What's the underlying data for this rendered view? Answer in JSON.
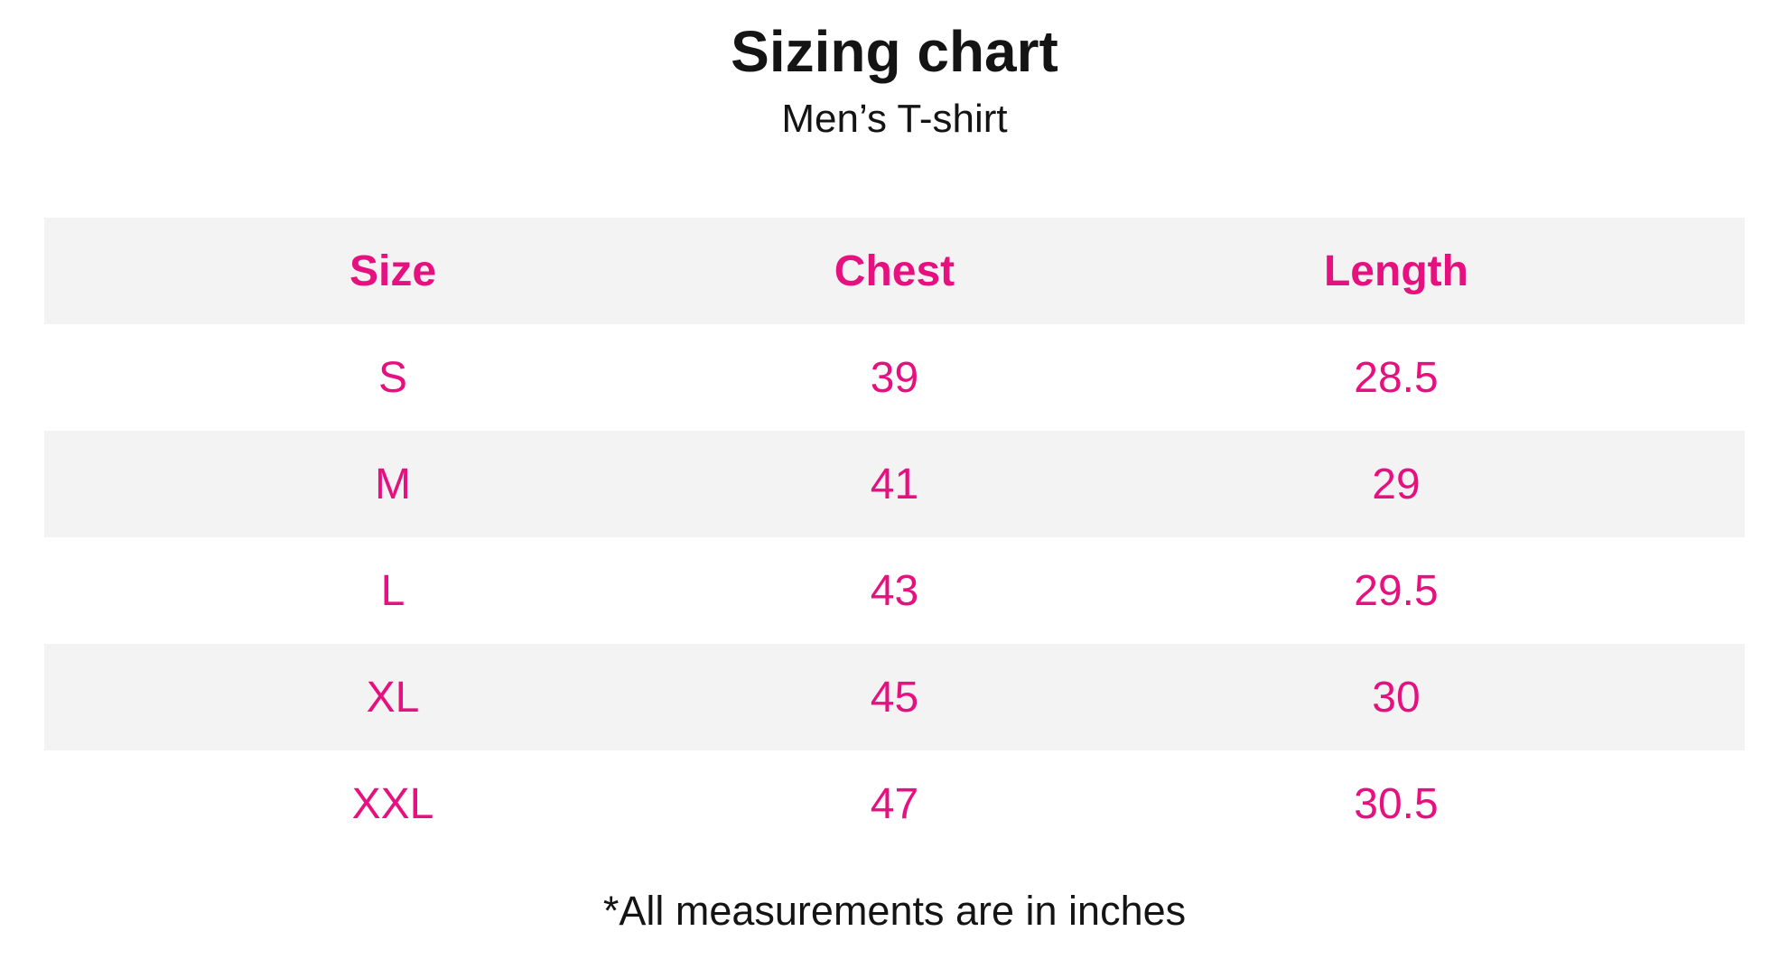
{
  "page": {
    "title": "Sizing chart",
    "subtitle": "Men’s T-shirt",
    "footnote": "*All measurements are in inches"
  },
  "colors": {
    "accent_pink": "#e6117f",
    "row_alt_bg": "#f3f3f4",
    "text_black": "#141414",
    "page_bg": "#ffffff"
  },
  "chart_data": {
    "type": "table",
    "title": "Sizing chart",
    "subtitle": "Men’s T-shirt",
    "columns": [
      "Size",
      "Chest",
      "Length"
    ],
    "rows": [
      [
        "S",
        "39",
        "28.5"
      ],
      [
        "M",
        "41",
        "29"
      ],
      [
        "L",
        "43",
        "29.5"
      ],
      [
        "XL",
        "45",
        "30"
      ],
      [
        "XXL",
        "47",
        "30.5"
      ]
    ],
    "units": "inches",
    "footnote": "*All measurements are in inches",
    "layout": {
      "striped_rows": true,
      "header_background": "#f3f3f4",
      "text_alignment": "center"
    }
  }
}
